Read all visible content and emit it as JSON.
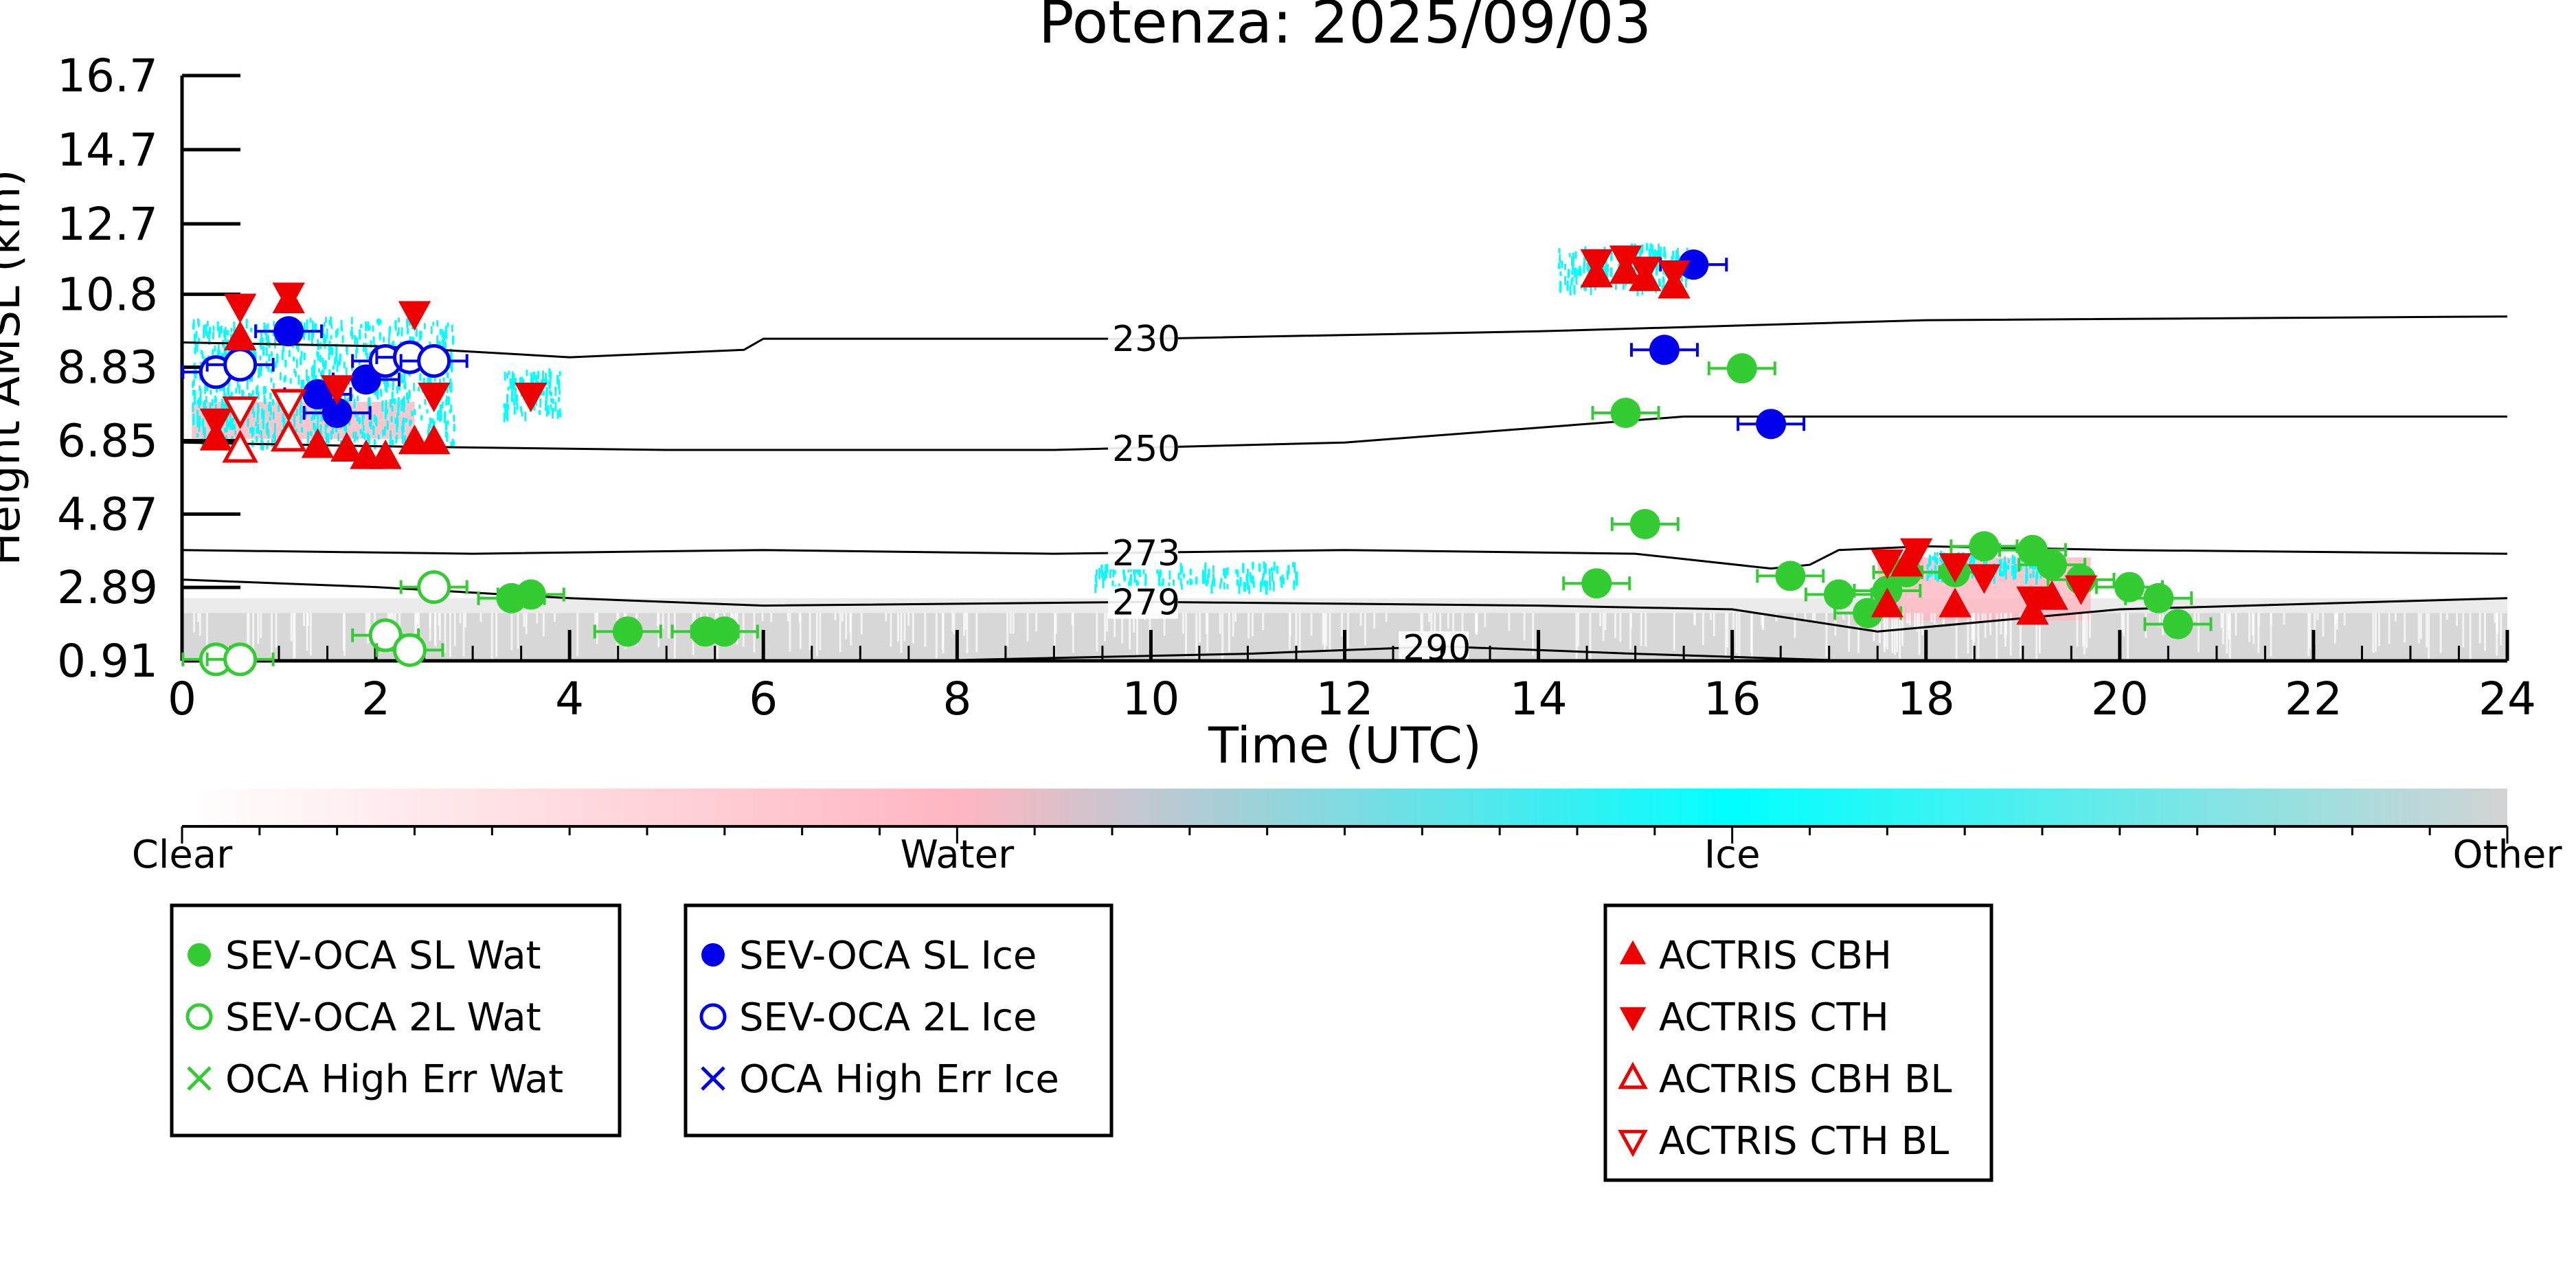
{
  "chart_data": {
    "type": "scatter",
    "title": "Potenza: 2025/09/03",
    "xlabel": "Time (UTC)",
    "ylabel": "Height AMSL (km)",
    "xlim": [
      0,
      24
    ],
    "ylim": [
      0.91,
      16.7
    ],
    "x_ticks": [
      "0",
      "2",
      "4",
      "6",
      "8",
      "10",
      "12",
      "14",
      "16",
      "18",
      "20",
      "22",
      "24"
    ],
    "y_ticks": [
      "0.91",
      "2.89",
      "4.87",
      "6.85",
      "8.83",
      "10.8",
      "12.7",
      "14.7",
      "16.7"
    ],
    "grid": false,
    "colorbar": {
      "labels": [
        "Clear",
        "Water",
        "Ice",
        "Other"
      ],
      "colors": [
        "#ffffff",
        "#ffb6c1",
        "#00ffff",
        "#d3d3d3"
      ]
    },
    "contours": [
      {
        "label": "230",
        "points": [
          [
            0,
            9.5
          ],
          [
            2,
            9.4
          ],
          [
            4,
            9.1
          ],
          [
            5.8,
            9.3
          ],
          [
            6,
            9.6
          ],
          [
            10,
            9.6
          ],
          [
            14,
            9.8
          ],
          [
            18,
            10.1
          ],
          [
            24,
            10.2
          ]
        ]
      },
      {
        "label": "250",
        "points": [
          [
            0,
            6.8
          ],
          [
            2,
            6.7
          ],
          [
            5,
            6.6
          ],
          [
            9,
            6.6
          ],
          [
            12,
            6.8
          ],
          [
            14,
            7.2
          ],
          [
            15.5,
            7.5
          ],
          [
            18,
            7.5
          ],
          [
            24,
            7.5
          ]
        ]
      },
      {
        "label": "273",
        "points": [
          [
            0,
            3.9
          ],
          [
            3,
            3.8
          ],
          [
            6,
            3.9
          ],
          [
            9,
            3.8
          ],
          [
            12,
            3.9
          ],
          [
            15,
            3.8
          ],
          [
            16.4,
            3.4
          ],
          [
            16.8,
            3.5
          ],
          [
            17.1,
            3.9
          ],
          [
            18,
            4.0
          ],
          [
            20,
            3.9
          ],
          [
            24,
            3.8
          ]
        ]
      },
      {
        "label": "279",
        "points": [
          [
            0,
            3.1
          ],
          [
            2,
            2.9
          ],
          [
            4,
            2.6
          ],
          [
            6,
            2.4
          ],
          [
            10,
            2.5
          ],
          [
            14,
            2.4
          ],
          [
            16,
            2.3
          ],
          [
            17.5,
            1.7
          ],
          [
            20,
            2.3
          ],
          [
            24,
            2.6
          ]
        ]
      },
      {
        "label": "290",
        "points": [
          [
            8,
            0.93
          ],
          [
            11,
            1.1
          ],
          [
            13,
            1.3
          ],
          [
            15,
            1.1
          ],
          [
            17,
            0.93
          ]
        ]
      }
    ],
    "series": [
      {
        "name": "SEV-OCA SL Wat",
        "color": "#33cc33",
        "marker": "filled-circle",
        "points": [
          [
            3.4,
            2.6
          ],
          [
            3.6,
            2.7
          ],
          [
            4.6,
            1.7
          ],
          [
            5.4,
            1.7
          ],
          [
            5.6,
            1.7
          ],
          [
            14.6,
            3.0
          ],
          [
            14.9,
            7.6
          ],
          [
            15.1,
            4.6
          ],
          [
            16.1,
            8.8
          ],
          [
            16.6,
            3.2
          ],
          [
            17.1,
            2.7
          ],
          [
            17.4,
            2.2
          ],
          [
            17.6,
            2.8
          ],
          [
            17.8,
            3.3
          ],
          [
            18.3,
            3.3
          ],
          [
            18.6,
            4.0
          ],
          [
            19.1,
            3.9
          ],
          [
            19.3,
            3.5
          ],
          [
            19.6,
            3.1
          ],
          [
            20.1,
            2.9
          ],
          [
            20.4,
            2.6
          ],
          [
            20.6,
            1.9
          ]
        ]
      },
      {
        "name": "SEV-OCA 2L Wat",
        "color": "#33cc33",
        "marker": "open-circle",
        "points": [
          [
            0.35,
            0.95
          ],
          [
            0.6,
            0.95
          ],
          [
            2.1,
            1.6
          ],
          [
            2.35,
            1.2
          ],
          [
            2.6,
            2.9
          ]
        ]
      },
      {
        "name": "OCA High Err Wat",
        "color": "#33cc33",
        "marker": "x",
        "points": []
      },
      {
        "name": "SEV-OCA SL Ice",
        "color": "#0000ee",
        "marker": "filled-circle",
        "points": [
          [
            1.1,
            9.8
          ],
          [
            1.4,
            8.1
          ],
          [
            1.6,
            7.6
          ],
          [
            1.9,
            8.5
          ],
          [
            15.3,
            9.3
          ],
          [
            15.6,
            11.6
          ],
          [
            16.4,
            7.3
          ]
        ]
      },
      {
        "name": "SEV-OCA 2L Ice",
        "color": "#0000ee",
        "marker": "open-circle",
        "points": [
          [
            0.35,
            8.7
          ],
          [
            0.6,
            8.9
          ],
          [
            2.1,
            9.0
          ],
          [
            2.35,
            9.1
          ],
          [
            2.6,
            9.0
          ]
        ]
      },
      {
        "name": "OCA High Err Ice",
        "color": "#0000ee",
        "marker": "x",
        "points": []
      },
      {
        "name": "ACTRIS CBH",
        "color": "#ee0000",
        "marker": "filled-triangle-up",
        "points": [
          [
            0.35,
            6.9
          ],
          [
            0.6,
            9.6
          ],
          [
            1.1,
            10.6
          ],
          [
            1.4,
            6.7
          ],
          [
            1.7,
            6.6
          ],
          [
            1.9,
            6.4
          ],
          [
            2.1,
            6.4
          ],
          [
            2.4,
            6.8
          ],
          [
            2.6,
            6.8
          ],
          [
            14.6,
            11.3
          ],
          [
            14.9,
            11.4
          ],
          [
            15.1,
            11.2
          ],
          [
            15.4,
            11.0
          ],
          [
            17.6,
            2.4
          ],
          [
            17.8,
            3.5
          ],
          [
            18.3,
            2.4
          ],
          [
            19.1,
            2.2
          ],
          [
            19.3,
            2.6
          ]
        ]
      },
      {
        "name": "ACTRIS CTH",
        "color": "#ee0000",
        "marker": "filled-triangle-down",
        "points": [
          [
            0.35,
            7.4
          ],
          [
            0.6,
            10.5
          ],
          [
            1.1,
            10.8
          ],
          [
            1.6,
            8.3
          ],
          [
            2.4,
            10.3
          ],
          [
            2.6,
            8.1
          ],
          [
            3.6,
            8.1
          ],
          [
            14.6,
            11.7
          ],
          [
            14.9,
            11.8
          ],
          [
            15.1,
            11.5
          ],
          [
            15.4,
            11.4
          ],
          [
            17.6,
            3.6
          ],
          [
            17.9,
            3.9
          ],
          [
            18.3,
            3.5
          ],
          [
            18.6,
            3.2
          ],
          [
            19.1,
            2.6
          ],
          [
            19.6,
            2.9
          ]
        ]
      },
      {
        "name": "ACTRIS CBH BL",
        "color": "#ee0000",
        "marker": "open-triangle-up",
        "points": [
          [
            0.6,
            6.6
          ],
          [
            1.1,
            6.9
          ]
        ]
      },
      {
        "name": "ACTRIS CTH BL",
        "color": "#ee0000",
        "marker": "open-triangle-down",
        "points": [
          [
            0.6,
            7.7
          ],
          [
            1.1,
            7.9
          ]
        ]
      }
    ],
    "legend_groups": [
      {
        "placement": "bottom-left",
        "items": [
          "SEV-OCA SL Wat",
          "SEV-OCA 2L Wat",
          "OCA High Err Wat"
        ]
      },
      {
        "placement": "bottom-center-left",
        "items": [
          "SEV-OCA SL Ice",
          "SEV-OCA 2L Ice",
          "OCA High Err Ice"
        ]
      },
      {
        "placement": "bottom-center-right",
        "items": [
          "ACTRIS CBH",
          "ACTRIS CTH",
          "ACTRIS CBH BL",
          "ACTRIS CTH BL"
        ]
      }
    ]
  }
}
